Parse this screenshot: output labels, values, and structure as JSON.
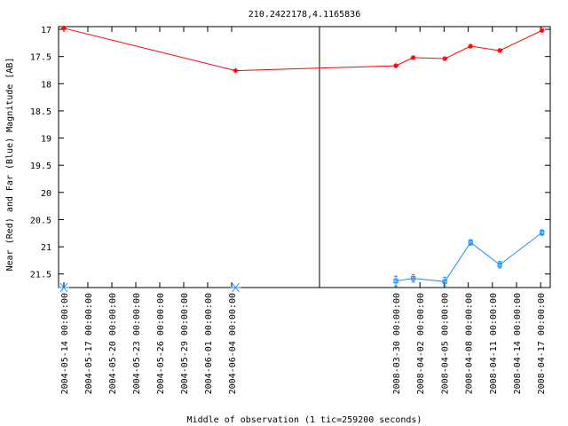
{
  "chart_data": {
    "type": "line",
    "title": "210.2422178,4.1165836",
    "xlabel": "Middle of observation (1 tic=259200 seconds)",
    "ylabel": "Near (Red) and Far (Blue) Magnitude [AB]",
    "y_inverted": true,
    "ylim": [
      21.75,
      16.95
    ],
    "y_ticks": [
      "17",
      "17.5",
      "18",
      "18.5",
      "19",
      "19.5",
      "20",
      "20.5",
      "21",
      "21.5"
    ],
    "grid": false,
    "panels": [
      {
        "x_ticks": [
          "2004-05-14 00:00:00",
          "2004-05-17 00:00:00",
          "2004-05-20 00:00:00",
          "2004-05-23 00:00:00",
          "2004-05-26 00:00:00",
          "2004-05-29 00:00:00",
          "2004-06-01 00:00:00",
          "2004-06-04 00:00:00"
        ]
      },
      {
        "x_ticks": [
          "2008-03-30 00:00:00",
          "2008-04-02 00:00:00",
          "2008-04-05 00:00:00",
          "2008-04-08 00:00:00",
          "2008-04-11 00:00:00",
          "2008-04-14 00:00:00",
          "2008-04-17 00:00:00"
        ]
      }
    ],
    "series": [
      {
        "color": "#ff0000",
        "marker": "star",
        "points": [
          {
            "x": "2004-05-14 00:00:00",
            "y": 16.98
          },
          {
            "x": "2004-06-04 12:00:00",
            "y": 17.76
          },
          {
            "x": "2008-03-30 00:00:00",
            "y": 17.67
          },
          {
            "x": "2008-04-01 04:00:00",
            "y": 17.52
          },
          {
            "x": "2008-04-05 02:00:00",
            "y": 17.54
          },
          {
            "x": "2008-04-08 07:00:00",
            "y": 17.31
          },
          {
            "x": "2008-04-11 22:00:00",
            "y": 17.39
          },
          {
            "x": "2008-04-17 04:00:00",
            "y": 17.02
          }
        ]
      },
      {
        "color": "#1e90ff",
        "marker": "square",
        "error_bars": true,
        "points": [
          {
            "x": "2008-03-30 00:00:00",
            "y": 21.63,
            "err": 0.09
          },
          {
            "x": "2008-04-01 04:00:00",
            "y": 21.58,
            "err": 0.07
          },
          {
            "x": "2008-04-05 02:00:00",
            "y": 21.64,
            "err": 0.08
          },
          {
            "x": "2008-04-08 07:00:00",
            "y": 20.92,
            "err": 0.05
          },
          {
            "x": "2008-04-11 22:00:00",
            "y": 21.33,
            "err": 0.06
          },
          {
            "x": "2008-04-17 04:00:00",
            "y": 20.74,
            "err": 0.05
          }
        ]
      },
      {
        "color": "#1e90ff",
        "marker": "asterisk",
        "note_points_at_lower_limit": true,
        "points": [
          {
            "x": "2004-05-14 00:00:00",
            "y": 21.75
          },
          {
            "x": "2004-06-04 12:00:00",
            "y": 21.75
          }
        ]
      }
    ]
  }
}
